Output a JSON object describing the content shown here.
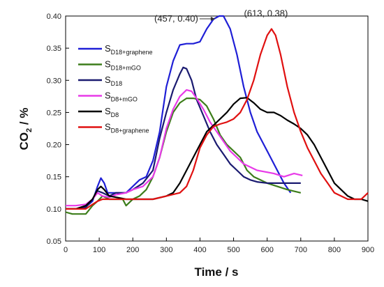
{
  "chart_data": {
    "type": "line",
    "xlabel": "Time / s",
    "ylabel_main": "CO",
    "ylabel_sub": "2",
    "ylabel_tail": " / %",
    "xlim": [
      0,
      900
    ],
    "ylim": [
      0.05,
      0.4
    ],
    "xticks": [
      0,
      100,
      200,
      300,
      400,
      500,
      600,
      700,
      800,
      900
    ],
    "yticks": [
      "0.05",
      "0.10",
      "0.15",
      "0.20",
      "0.25",
      "0.30",
      "0.35",
      "0.40"
    ],
    "grid": false,
    "legend_position": "top-left",
    "series": [
      {
        "name_main": "S",
        "name_sub": "D18+graphene",
        "color": "#1f1fd6",
        "points": [
          [
            0,
            0.1
          ],
          [
            30,
            0.1
          ],
          [
            60,
            0.103
          ],
          [
            80,
            0.112
          ],
          [
            95,
            0.135
          ],
          [
            105,
            0.148
          ],
          [
            115,
            0.14
          ],
          [
            125,
            0.125
          ],
          [
            150,
            0.125
          ],
          [
            180,
            0.125
          ],
          [
            200,
            0.135
          ],
          [
            220,
            0.145
          ],
          [
            240,
            0.15
          ],
          [
            260,
            0.175
          ],
          [
            280,
            0.22
          ],
          [
            300,
            0.29
          ],
          [
            320,
            0.33
          ],
          [
            340,
            0.355
          ],
          [
            360,
            0.357
          ],
          [
            380,
            0.357
          ],
          [
            400,
            0.36
          ],
          [
            420,
            0.38
          ],
          [
            440,
            0.395
          ],
          [
            457,
            0.4
          ],
          [
            470,
            0.4
          ],
          [
            490,
            0.38
          ],
          [
            510,
            0.34
          ],
          [
            530,
            0.29
          ],
          [
            550,
            0.25
          ],
          [
            570,
            0.22
          ],
          [
            590,
            0.2
          ],
          [
            610,
            0.18
          ],
          [
            630,
            0.16
          ],
          [
            650,
            0.14
          ],
          [
            670,
            0.125
          ]
        ]
      },
      {
        "name_main": "S",
        "name_sub": "D18+mGO",
        "color": "#3c7d1a",
        "points": [
          [
            0,
            0.095
          ],
          [
            20,
            0.092
          ],
          [
            60,
            0.092
          ],
          [
            80,
            0.105
          ],
          [
            95,
            0.112
          ],
          [
            110,
            0.12
          ],
          [
            130,
            0.115
          ],
          [
            150,
            0.115
          ],
          [
            170,
            0.115
          ],
          [
            180,
            0.105
          ],
          [
            190,
            0.11
          ],
          [
            200,
            0.115
          ],
          [
            220,
            0.12
          ],
          [
            240,
            0.13
          ],
          [
            260,
            0.15
          ],
          [
            280,
            0.18
          ],
          [
            300,
            0.22
          ],
          [
            320,
            0.25
          ],
          [
            340,
            0.265
          ],
          [
            360,
            0.272
          ],
          [
            380,
            0.272
          ],
          [
            400,
            0.27
          ],
          [
            420,
            0.26
          ],
          [
            440,
            0.24
          ],
          [
            460,
            0.215
          ],
          [
            480,
            0.2
          ],
          [
            500,
            0.19
          ],
          [
            520,
            0.18
          ],
          [
            540,
            0.16
          ],
          [
            560,
            0.15
          ],
          [
            580,
            0.145
          ],
          [
            600,
            0.14
          ],
          [
            630,
            0.135
          ],
          [
            660,
            0.13
          ],
          [
            700,
            0.125
          ]
        ]
      },
      {
        "name_main": "S",
        "name_sub": "D18",
        "color": "#1a1a70",
        "points": [
          [
            0,
            0.1
          ],
          [
            30,
            0.1
          ],
          [
            60,
            0.102
          ],
          [
            80,
            0.115
          ],
          [
            95,
            0.128
          ],
          [
            110,
            0.125
          ],
          [
            130,
            0.12
          ],
          [
            150,
            0.125
          ],
          [
            180,
            0.125
          ],
          [
            200,
            0.13
          ],
          [
            230,
            0.14
          ],
          [
            260,
            0.16
          ],
          [
            280,
            0.21
          ],
          [
            300,
            0.25
          ],
          [
            320,
            0.285
          ],
          [
            340,
            0.31
          ],
          [
            350,
            0.32
          ],
          [
            360,
            0.318
          ],
          [
            375,
            0.3
          ],
          [
            390,
            0.27
          ],
          [
            410,
            0.245
          ],
          [
            430,
            0.22
          ],
          [
            450,
            0.2
          ],
          [
            470,
            0.185
          ],
          [
            490,
            0.17
          ],
          [
            510,
            0.16
          ],
          [
            530,
            0.15
          ],
          [
            550,
            0.145
          ],
          [
            570,
            0.142
          ],
          [
            600,
            0.14
          ],
          [
            650,
            0.14
          ],
          [
            700,
            0.14
          ]
        ]
      },
      {
        "name_main": "S",
        "name_sub": "D8+mGO",
        "color": "#e83ae8",
        "points": [
          [
            0,
            0.105
          ],
          [
            30,
            0.105
          ],
          [
            60,
            0.107
          ],
          [
            80,
            0.115
          ],
          [
            95,
            0.125
          ],
          [
            110,
            0.12
          ],
          [
            130,
            0.118
          ],
          [
            150,
            0.122
          ],
          [
            180,
            0.125
          ],
          [
            200,
            0.13
          ],
          [
            230,
            0.135
          ],
          [
            260,
            0.15
          ],
          [
            280,
            0.18
          ],
          [
            300,
            0.225
          ],
          [
            320,
            0.255
          ],
          [
            340,
            0.275
          ],
          [
            360,
            0.285
          ],
          [
            375,
            0.283
          ],
          [
            390,
            0.272
          ],
          [
            410,
            0.255
          ],
          [
            430,
            0.235
          ],
          [
            450,
            0.22
          ],
          [
            470,
            0.205
          ],
          [
            490,
            0.19
          ],
          [
            510,
            0.18
          ],
          [
            530,
            0.17
          ],
          [
            550,
            0.165
          ],
          [
            570,
            0.16
          ],
          [
            590,
            0.158
          ],
          [
            620,
            0.155
          ],
          [
            650,
            0.15
          ],
          [
            680,
            0.155
          ],
          [
            705,
            0.152
          ]
        ]
      },
      {
        "name_main": "S",
        "name_sub": "D8",
        "color": "#000000",
        "points": [
          [
            0,
            0.1
          ],
          [
            30,
            0.1
          ],
          [
            60,
            0.105
          ],
          [
            80,
            0.115
          ],
          [
            95,
            0.13
          ],
          [
            105,
            0.135
          ],
          [
            115,
            0.13
          ],
          [
            130,
            0.12
          ],
          [
            150,
            0.118
          ],
          [
            180,
            0.115
          ],
          [
            220,
            0.115
          ],
          [
            260,
            0.115
          ],
          [
            300,
            0.12
          ],
          [
            320,
            0.125
          ],
          [
            340,
            0.14
          ],
          [
            360,
            0.16
          ],
          [
            380,
            0.18
          ],
          [
            400,
            0.2
          ],
          [
            420,
            0.22
          ],
          [
            440,
            0.23
          ],
          [
            460,
            0.24
          ],
          [
            480,
            0.25
          ],
          [
            500,
            0.263
          ],
          [
            520,
            0.272
          ],
          [
            540,
            0.273
          ],
          [
            560,
            0.265
          ],
          [
            580,
            0.255
          ],
          [
            600,
            0.25
          ],
          [
            620,
            0.25
          ],
          [
            640,
            0.245
          ],
          [
            660,
            0.238
          ],
          [
            680,
            0.232
          ],
          [
            700,
            0.225
          ],
          [
            720,
            0.215
          ],
          [
            740,
            0.2
          ],
          [
            760,
            0.18
          ],
          [
            780,
            0.16
          ],
          [
            800,
            0.14
          ],
          [
            820,
            0.13
          ],
          [
            840,
            0.12
          ],
          [
            860,
            0.115
          ],
          [
            880,
            0.115
          ],
          [
            900,
            0.112
          ]
        ]
      },
      {
        "name_main": "S",
        "name_sub": "D8+graphene",
        "color": "#e01010",
        "points": [
          [
            0,
            0.1
          ],
          [
            30,
            0.1
          ],
          [
            60,
            0.1
          ],
          [
            80,
            0.107
          ],
          [
            95,
            0.112
          ],
          [
            110,
            0.115
          ],
          [
            140,
            0.115
          ],
          [
            180,
            0.115
          ],
          [
            220,
            0.115
          ],
          [
            260,
            0.115
          ],
          [
            300,
            0.12
          ],
          [
            340,
            0.125
          ],
          [
            360,
            0.135
          ],
          [
            380,
            0.16
          ],
          [
            400,
            0.195
          ],
          [
            420,
            0.215
          ],
          [
            440,
            0.228
          ],
          [
            460,
            0.232
          ],
          [
            480,
            0.235
          ],
          [
            500,
            0.24
          ],
          [
            520,
            0.25
          ],
          [
            540,
            0.27
          ],
          [
            560,
            0.3
          ],
          [
            580,
            0.34
          ],
          [
            600,
            0.37
          ],
          [
            613,
            0.38
          ],
          [
            625,
            0.37
          ],
          [
            640,
            0.34
          ],
          [
            660,
            0.29
          ],
          [
            680,
            0.25
          ],
          [
            700,
            0.22
          ],
          [
            720,
            0.195
          ],
          [
            740,
            0.175
          ],
          [
            760,
            0.155
          ],
          [
            780,
            0.14
          ],
          [
            800,
            0.125
          ],
          [
            820,
            0.12
          ],
          [
            840,
            0.115
          ],
          [
            860,
            0.115
          ],
          [
            880,
            0.115
          ],
          [
            900,
            0.125
          ]
        ]
      }
    ],
    "annotations": [
      {
        "text": "(457, 0.40)",
        "x": 457,
        "y": 0.4,
        "arrow": true
      },
      {
        "text": "(613, 0.38)",
        "x": 613,
        "y": 0.38,
        "arrow": false
      }
    ]
  }
}
